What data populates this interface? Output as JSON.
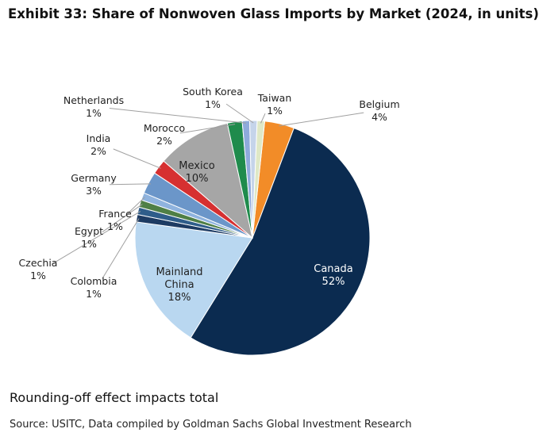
{
  "chart_data": {
    "type": "pie",
    "title": "Exhibit 33: Share of Nonwoven Glass Imports by Market (2024, in units)",
    "categories": [
      "Belgium",
      "Canada",
      "Mainland China",
      "Colombia",
      "Czechia",
      "Egypt",
      "France",
      "Germany",
      "India",
      "Mexico",
      "Morocco",
      "Netherlands",
      "South Korea",
      "Taiwan"
    ],
    "values": [
      4,
      52,
      18,
      1,
      1,
      1,
      1,
      3,
      2,
      10,
      2,
      1,
      1,
      1
    ],
    "value_labels": [
      "4%",
      "52%",
      "18%",
      "1%",
      "1%",
      "1%",
      "1%",
      "3%",
      "2%",
      "10%",
      "2%",
      "1%",
      "1%",
      "1%"
    ],
    "colors": [
      "#f28c28",
      "#0b2b50",
      "#b9d7f0",
      "#1d3b63",
      "#2f5d8a",
      "#4f7f46",
      "#8fb3de",
      "#6b96c9",
      "#d63031",
      "#a6a6a6",
      "#1f8b4c",
      "#8eaadb",
      "#c5d4ea",
      "#dfe8c6"
    ],
    "note": "Rounding-off effect impacts total",
    "source": "Source: USITC, Data compiled by Goldman Sachs Global Investment Research"
  }
}
